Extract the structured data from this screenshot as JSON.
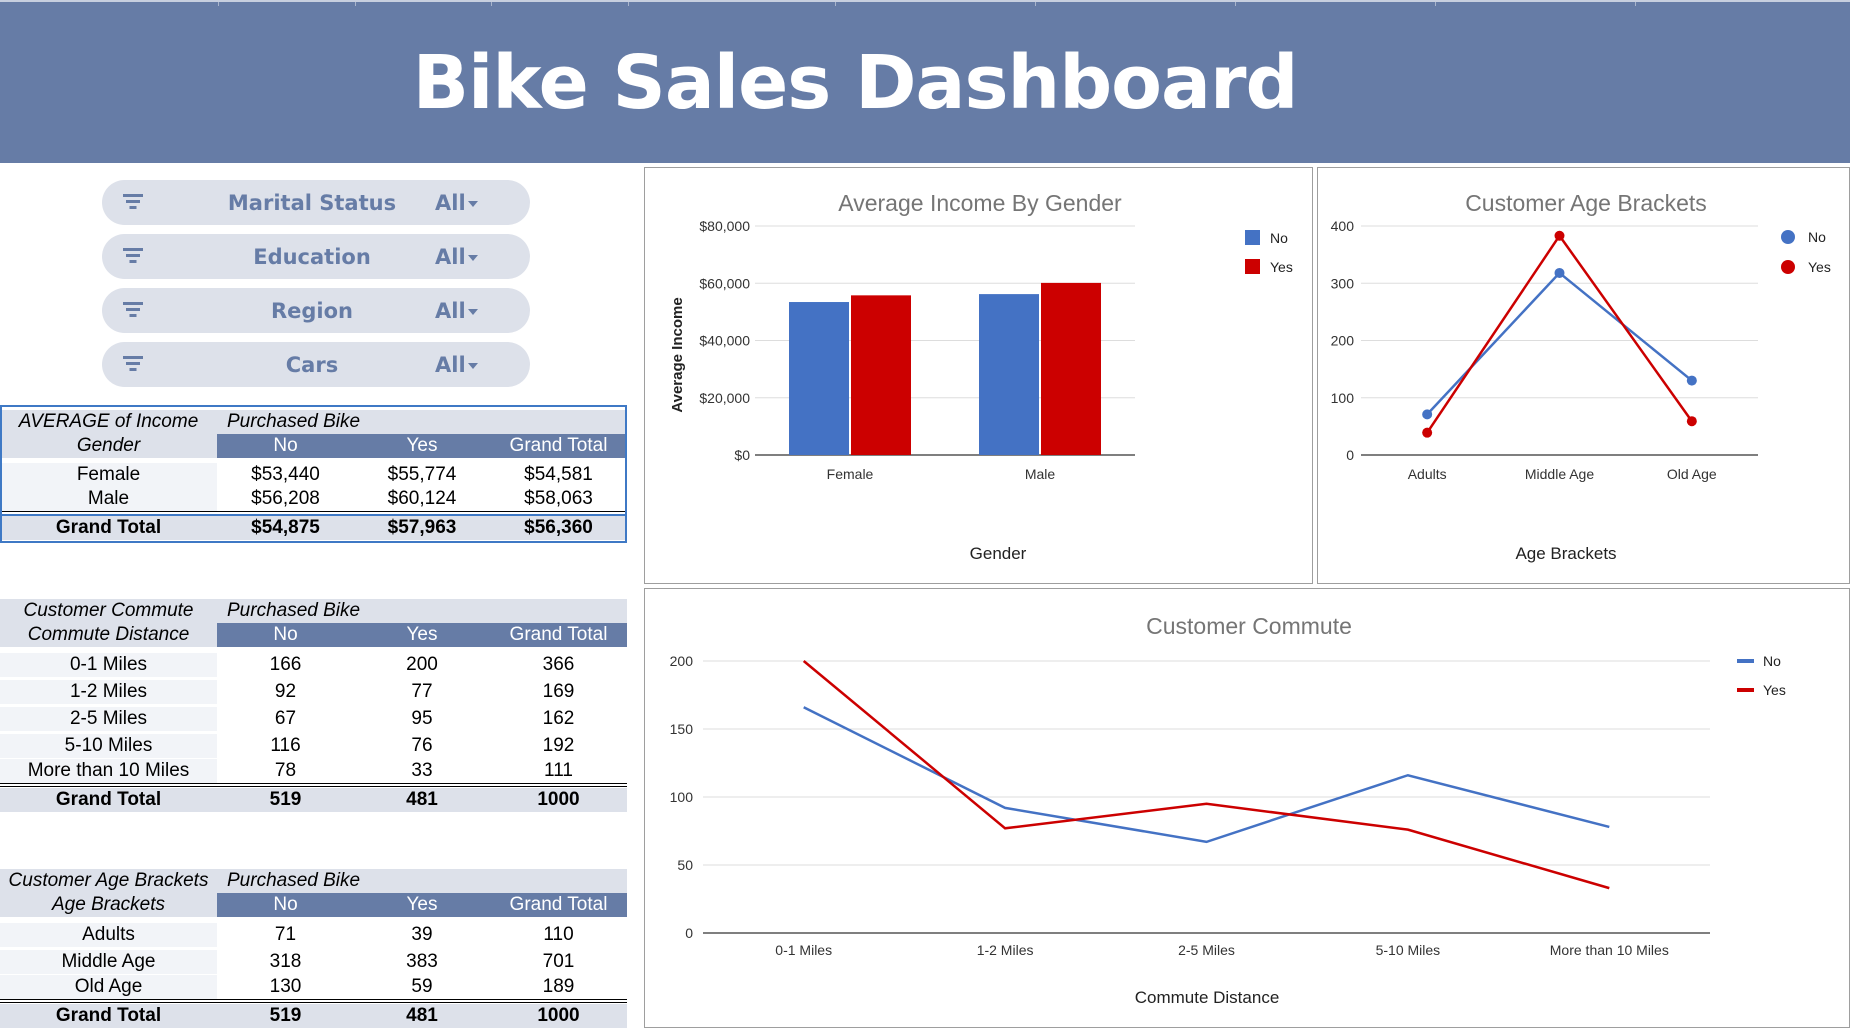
{
  "title": "Bike Sales Dashboard",
  "colors": {
    "header": "#667ca6",
    "no": "#4472c4",
    "yes": "#cc0000",
    "slicer_bg": "#dde1ea"
  },
  "slicers": [
    {
      "label": "Marital Status",
      "value": "All",
      "icon": "filter-icon"
    },
    {
      "label": "Education",
      "value": "All",
      "icon": "filter-icon"
    },
    {
      "label": "Region",
      "value": "All",
      "icon": "filter-icon"
    },
    {
      "label": "Cars",
      "value": "All",
      "icon": "filter-icon"
    }
  ],
  "tables": [
    {
      "corner_top": "AVERAGE of Income",
      "corner_bottom": "Gender",
      "pivot_field": "Purchased Bike",
      "columns": [
        "No",
        "Yes",
        "Grand Total"
      ],
      "rows": [
        {
          "label": "Female",
          "values": [
            "$53,440",
            "$55,774",
            "$54,581"
          ]
        },
        {
          "label": "Male",
          "values": [
            "$56,208",
            "$60,124",
            "$58,063"
          ]
        }
      ],
      "total": {
        "label": "Grand Total",
        "values": [
          "$54,875",
          "$57,963",
          "$56,360"
        ]
      }
    },
    {
      "corner_top": "Customer Commute",
      "corner_bottom": "Commute Distance",
      "pivot_field": "Purchased Bike",
      "columns": [
        "No",
        "Yes",
        "Grand Total"
      ],
      "rows": [
        {
          "label": "0-1 Miles",
          "values": [
            "166",
            "200",
            "366"
          ]
        },
        {
          "label": "1-2 Miles",
          "values": [
            "92",
            "77",
            "169"
          ]
        },
        {
          "label": "2-5 Miles",
          "values": [
            "67",
            "95",
            "162"
          ]
        },
        {
          "label": "5-10 Miles",
          "values": [
            "116",
            "76",
            "192"
          ]
        },
        {
          "label": "More than 10 Miles",
          "values": [
            "78",
            "33",
            "111"
          ]
        }
      ],
      "total": {
        "label": "Grand Total",
        "values": [
          "519",
          "481",
          "1000"
        ]
      }
    },
    {
      "corner_top": "Customer Age Brackets",
      "corner_bottom": "Age Brackets",
      "pivot_field": "Purchased Bike",
      "columns": [
        "No",
        "Yes",
        "Grand Total"
      ],
      "rows": [
        {
          "label": "Adults",
          "values": [
            "71",
            "39",
            "110"
          ]
        },
        {
          "label": "Middle Age",
          "values": [
            "318",
            "383",
            "701"
          ]
        },
        {
          "label": "Old Age",
          "values": [
            "130",
            "59",
            "189"
          ]
        }
      ],
      "total": {
        "label": "Grand Total",
        "values": [
          "519",
          "481",
          "1000"
        ]
      }
    }
  ],
  "chart_data": [
    {
      "type": "bar",
      "title": "Average Income By Gender",
      "xlabel": "Gender",
      "ylabel": "Average Income",
      "categories": [
        "Female",
        "Male"
      ],
      "series": [
        {
          "name": "No",
          "values": [
            53440,
            56208
          ]
        },
        {
          "name": "Yes",
          "values": [
            55774,
            60124
          ]
        }
      ],
      "ylim": [
        0,
        80000
      ],
      "yticks": [
        "$0",
        "$20,000",
        "$40,000",
        "$60,000",
        "$80,000"
      ],
      "legend": "right",
      "grid": true
    },
    {
      "type": "line",
      "title": "Customer Age Brackets",
      "xlabel": "Age Brackets",
      "ylabel": "",
      "categories": [
        "Adults",
        "Middle Age",
        "Old Age"
      ],
      "series": [
        {
          "name": "No",
          "values": [
            71,
            318,
            130
          ]
        },
        {
          "name": "Yes",
          "values": [
            39,
            383,
            59
          ]
        }
      ],
      "ylim": [
        0,
        400
      ],
      "yticks": [
        "0",
        "100",
        "200",
        "300",
        "400"
      ],
      "legend": "right",
      "markers": true,
      "grid": true
    },
    {
      "type": "line",
      "title": "Customer Commute",
      "xlabel": "Commute Distance",
      "ylabel": "",
      "categories": [
        "0-1 Miles",
        "1-2 Miles",
        "2-5 Miles",
        "5-10 Miles",
        "More than 10 Miles"
      ],
      "series": [
        {
          "name": "No",
          "values": [
            166,
            92,
            67,
            116,
            78
          ]
        },
        {
          "name": "Yes",
          "values": [
            200,
            77,
            95,
            76,
            33
          ]
        }
      ],
      "ylim": [
        0,
        200
      ],
      "yticks": [
        "0",
        "50",
        "100",
        "150",
        "200"
      ],
      "legend": "right",
      "markers": false,
      "grid": true
    }
  ]
}
